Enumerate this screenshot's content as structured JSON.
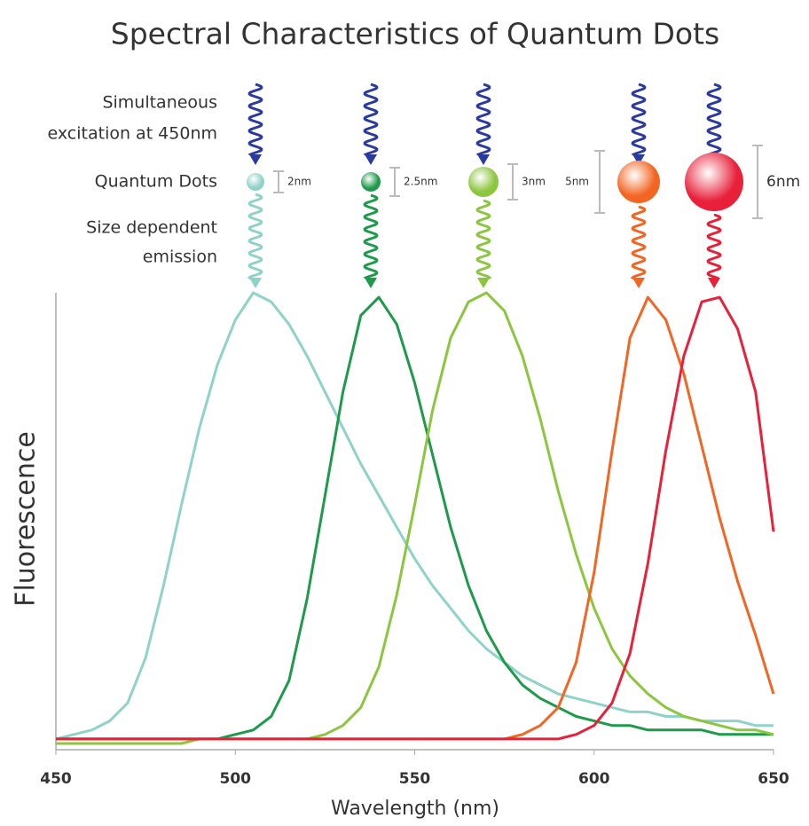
{
  "chart_data": {
    "type": "line",
    "title": "Spectral Characteristics of Quantum Dots",
    "annotations": {
      "excitation": [
        "Simultaneous",
        "excitation at 450nm"
      ],
      "dots": "Quantum Dots",
      "emission": [
        "Size dependent",
        "emission"
      ]
    },
    "excitation_color": "#2b3a9e",
    "xlabel": "Wavelength (nm)",
    "ylabel": "Fluorescence",
    "xlim": [
      450,
      650
    ],
    "xticks": [
      450,
      500,
      550,
      600,
      650
    ],
    "ylim": [
      0,
      1
    ],
    "x": [
      450,
      455,
      460,
      465,
      470,
      475,
      480,
      485,
      490,
      495,
      500,
      505,
      510,
      515,
      520,
      525,
      530,
      535,
      540,
      545,
      550,
      555,
      560,
      565,
      570,
      575,
      580,
      585,
      590,
      595,
      600,
      605,
      610,
      615,
      620,
      625,
      630,
      635,
      640,
      645,
      650
    ],
    "series": [
      {
        "size_label": "2nm",
        "color": "#8fd3c8",
        "values": [
          0.01,
          0.02,
          0.03,
          0.05,
          0.09,
          0.19,
          0.35,
          0.53,
          0.7,
          0.84,
          0.94,
          1.0,
          0.98,
          0.93,
          0.86,
          0.78,
          0.7,
          0.62,
          0.55,
          0.48,
          0.41,
          0.35,
          0.3,
          0.25,
          0.21,
          0.18,
          0.15,
          0.13,
          0.11,
          0.1,
          0.09,
          0.08,
          0.07,
          0.07,
          0.06,
          0.06,
          0.05,
          0.05,
          0.05,
          0.04,
          0.04
        ]
      },
      {
        "size_label": "2.5nm",
        "color": "#1e9a4c",
        "values": [
          0.01,
          0.01,
          0.01,
          0.01,
          0.01,
          0.01,
          0.01,
          0.01,
          0.01,
          0.01,
          0.02,
          0.03,
          0.06,
          0.14,
          0.32,
          0.55,
          0.78,
          0.95,
          0.99,
          0.93,
          0.8,
          0.64,
          0.48,
          0.35,
          0.25,
          0.18,
          0.13,
          0.1,
          0.08,
          0.06,
          0.05,
          0.04,
          0.04,
          0.03,
          0.03,
          0.03,
          0.03,
          0.02,
          0.02,
          0.02,
          0.02
        ]
      },
      {
        "size_label": "3nm",
        "color": "#8cc63e",
        "values": [
          0.0,
          0.0,
          0.0,
          0.0,
          0.0,
          0.0,
          0.0,
          0.0,
          0.01,
          0.01,
          0.01,
          0.01,
          0.01,
          0.01,
          0.01,
          0.02,
          0.04,
          0.08,
          0.17,
          0.33,
          0.53,
          0.74,
          0.9,
          0.98,
          1.0,
          0.96,
          0.86,
          0.72,
          0.56,
          0.42,
          0.3,
          0.21,
          0.15,
          0.11,
          0.08,
          0.06,
          0.05,
          0.04,
          0.03,
          0.03,
          0.02
        ]
      },
      {
        "size_label": "5nm",
        "color": "#f26522",
        "values": [
          0.01,
          0.01,
          0.01,
          0.01,
          0.01,
          0.01,
          0.01,
          0.01,
          0.01,
          0.01,
          0.01,
          0.01,
          0.01,
          0.01,
          0.01,
          0.01,
          0.01,
          0.01,
          0.01,
          0.01,
          0.01,
          0.01,
          0.01,
          0.01,
          0.01,
          0.01,
          0.02,
          0.04,
          0.08,
          0.18,
          0.38,
          0.65,
          0.9,
          0.99,
          0.94,
          0.82,
          0.66,
          0.5,
          0.36,
          0.24,
          0.11
        ]
      },
      {
        "size_label": "6nm",
        "color": "#e8203a",
        "values": [
          0.01,
          0.01,
          0.01,
          0.01,
          0.01,
          0.01,
          0.01,
          0.01,
          0.01,
          0.01,
          0.01,
          0.01,
          0.01,
          0.01,
          0.01,
          0.01,
          0.01,
          0.01,
          0.01,
          0.01,
          0.01,
          0.01,
          0.01,
          0.01,
          0.01,
          0.01,
          0.01,
          0.01,
          0.01,
          0.02,
          0.04,
          0.09,
          0.2,
          0.4,
          0.65,
          0.86,
          0.98,
          0.99,
          0.92,
          0.78,
          0.47
        ]
      }
    ]
  }
}
